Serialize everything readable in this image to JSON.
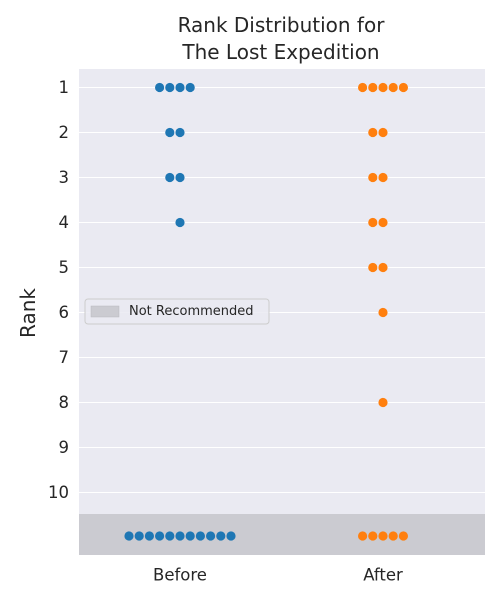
{
  "chart_data": {
    "type": "scatter",
    "subtype": "swarm",
    "title": [
      "Rank Distribution for",
      "The Lost Expedition"
    ],
    "ylabel": "Rank",
    "xlabel": "",
    "categories": [
      "Before",
      "After"
    ],
    "y_ticks": [
      "1",
      "2",
      "3",
      "4",
      "5",
      "6",
      "7",
      "8",
      "9",
      "10"
    ],
    "y_inverted": true,
    "grid": true,
    "legend": {
      "placement": "center-left",
      "entries": [
        "Not Recommended"
      ]
    },
    "not_recommended_band": {
      "label": "Not Recommended",
      "color": "#cbcbd1"
    },
    "series": [
      {
        "category": "Before",
        "color": "#1f77b4",
        "counts": {
          "1": 4,
          "2": 2,
          "3": 2,
          "4": 1,
          "Not Recommended": 11
        }
      },
      {
        "category": "After",
        "color": "#ff7f0e",
        "counts": {
          "1": 5,
          "2": 2,
          "3": 2,
          "4": 2,
          "5": 2,
          "6": 1,
          "8": 1,
          "Not Recommended": 5
        }
      }
    ],
    "colors": {
      "plot_bg": "#eaeaf2",
      "grid": "#ffffff",
      "text": "#262626"
    }
  }
}
